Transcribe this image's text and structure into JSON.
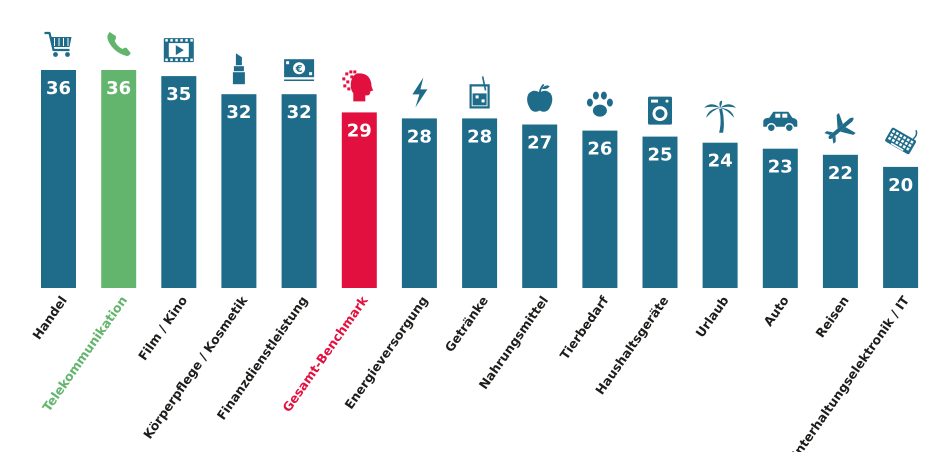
{
  "chart_data": {
    "type": "bar",
    "categories": [
      "Handel",
      "Telekommunikation",
      "Film / Kino",
      "Körperpflege / Kosmetik",
      "Finanzdienstleistung",
      "Gesamt-Benchmark",
      "Energieversorgung",
      "Getränke",
      "Nahrungsmittel",
      "Tierbedarf",
      "Haushaltsgeräte",
      "Urlaub",
      "Auto",
      "Reisen",
      "Unterhaltungselektronik / IT"
    ],
    "values": [
      36,
      36,
      35,
      32,
      32,
      29,
      28,
      28,
      27,
      26,
      25,
      24,
      23,
      22,
      20
    ],
    "icons": [
      "shopping-cart-icon",
      "phone-icon",
      "film-icon",
      "lipstick-icon",
      "money-icon",
      "head-pixels-icon",
      "lightning-icon",
      "drink-icon",
      "apple-icon",
      "paw-icon",
      "washing-machine-icon",
      "palm-tree-icon",
      "car-icon",
      "airplane-icon",
      "keyboard-icon"
    ],
    "highlight": {
      "Telekommunikation": "#63b56d",
      "Gesamt-Benchmark": "#e2103f"
    },
    "colors": {
      "default": "#1f6b8a",
      "label": "#1d1d1b"
    },
    "title": "",
    "xlabel": "",
    "ylabel": "",
    "ylim": [
      0,
      36
    ],
    "grid": false
  }
}
